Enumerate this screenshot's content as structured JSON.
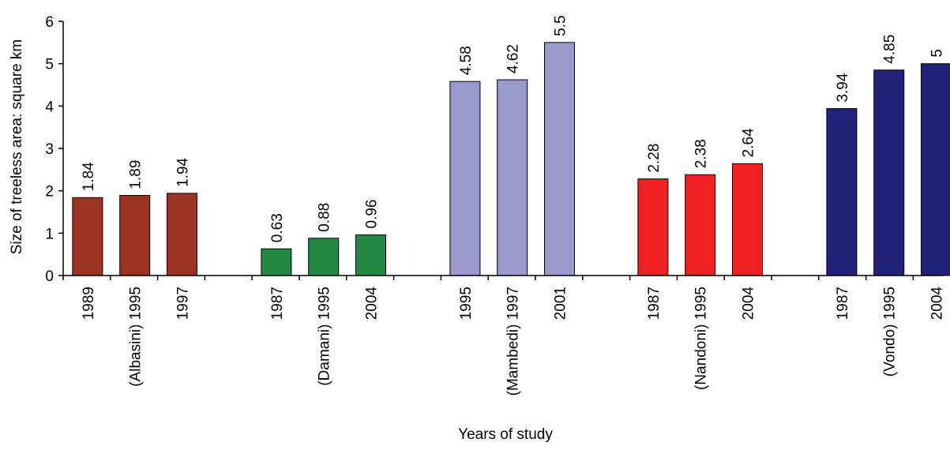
{
  "chart_data": {
    "type": "bar",
    "xlabel": "Years of study",
    "ylabel": "Size of treeless area: square km",
    "ylim": [
      0,
      6
    ],
    "yticks": [
      "0",
      "1",
      "2",
      "3",
      "4",
      "5",
      "6"
    ],
    "grid": false,
    "legend": "none",
    "groups": [
      {
        "name": "Albasini",
        "color": "#993322",
        "bars": [
          {
            "label": "1989",
            "value": 1.84,
            "value_label": "1.84"
          },
          {
            "label": "(Albasini) 1995",
            "value": 1.89,
            "value_label": "1.89"
          },
          {
            "label": "1997",
            "value": 1.94,
            "value_label": "1.94"
          }
        ]
      },
      {
        "name": "Damani",
        "color": "#228844",
        "bars": [
          {
            "label": "1987",
            "value": 0.63,
            "value_label": "0.63"
          },
          {
            "label": "(Damani) 1995",
            "value": 0.88,
            "value_label": "0.88"
          },
          {
            "label": "2004",
            "value": 0.96,
            "value_label": "0.96"
          }
        ]
      },
      {
        "name": "Mambedi",
        "color": "#9999cc",
        "bars": [
          {
            "label": "1995",
            "value": 4.58,
            "value_label": "4.58"
          },
          {
            "label": "(Mambedi) 1997",
            "value": 4.62,
            "value_label": "4.62"
          },
          {
            "label": "2001",
            "value": 5.5,
            "value_label": "5.5"
          }
        ]
      },
      {
        "name": "Nandoni",
        "color": "#ee2222",
        "bars": [
          {
            "label": "1987",
            "value": 2.28,
            "value_label": "2.28"
          },
          {
            "label": "(Nandoni) 1995",
            "value": 2.38,
            "value_label": "2.38"
          },
          {
            "label": "2004",
            "value": 2.64,
            "value_label": "2.64"
          }
        ]
      },
      {
        "name": "Vondo",
        "color": "#222277",
        "bars": [
          {
            "label": "1987",
            "value": 3.94,
            "value_label": "3.94"
          },
          {
            "label": "(Vondo) 1995",
            "value": 4.85,
            "value_label": "4.85"
          },
          {
            "label": "2004",
            "value": 5,
            "value_label": "5"
          }
        ]
      }
    ]
  }
}
